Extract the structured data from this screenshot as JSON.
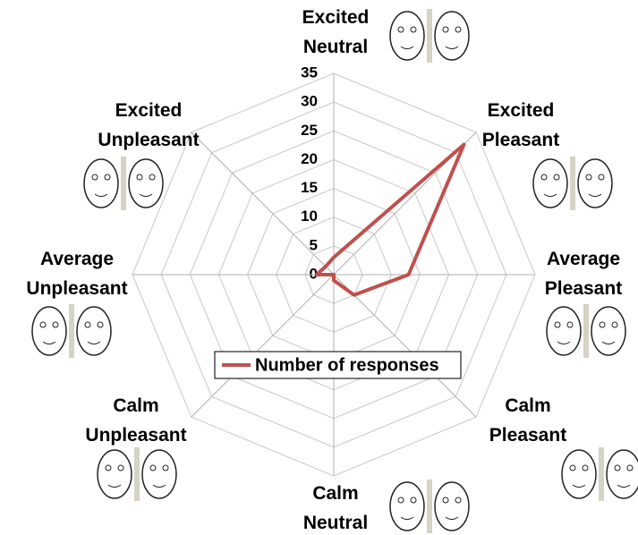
{
  "chart_data": {
    "type": "radar",
    "categories": [
      "Excited\nNeutral",
      "Excited\nPleasant",
      "Average\nPleasant",
      "Calm\nPleasant",
      "Calm\nNeutral",
      "Calm\nUnpleasant",
      "Average\nUnpleasant",
      "Excited\nUnpleasant"
    ],
    "series": [
      {
        "name": "Number of responses",
        "color": "#c0504d",
        "values": [
          3,
          32,
          13,
          5,
          1,
          0,
          3,
          2
        ]
      }
    ],
    "rlim": [
      0,
      35
    ],
    "rticks": [
      0,
      5,
      10,
      15,
      20,
      25,
      30,
      35
    ],
    "grid": true
  }
}
